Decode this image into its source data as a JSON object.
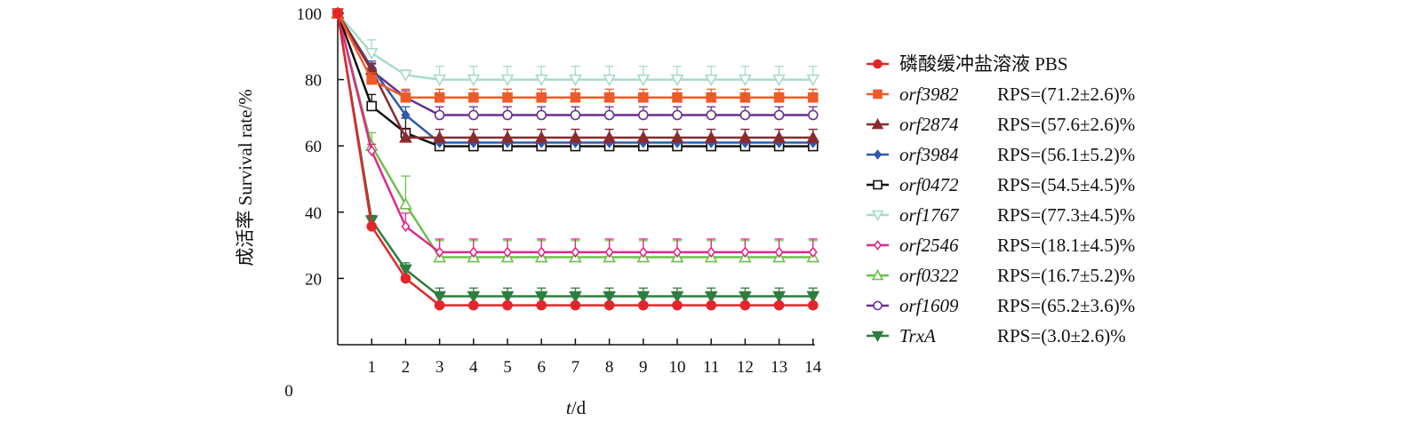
{
  "chart_data": {
    "type": "line",
    "xlabel_italic": "t",
    "xlabel_rest": "/d",
    "ylabel": "成活率 Survival rate/%",
    "origin_label": "0",
    "xlim": [
      0,
      14
    ],
    "ylim": [
      0,
      100
    ],
    "x_ticks": [
      1,
      2,
      3,
      4,
      5,
      6,
      7,
      8,
      9,
      10,
      11,
      12,
      13,
      14
    ],
    "y_ticks": [
      20,
      40,
      60,
      80,
      100
    ],
    "x": [
      0,
      1,
      2,
      3,
      4,
      5,
      6,
      7,
      8,
      9,
      10,
      11,
      12,
      13,
      14
    ],
    "legend_position": "right",
    "series": [
      {
        "name": "磷酸缓冲盐溶液 PBS",
        "italic": false,
        "rps": "",
        "color": "#e5252a",
        "marker": "circle",
        "filled": true,
        "values": [
          100,
          35.7,
          20,
          11.9,
          11.9,
          11.9,
          11.9,
          11.9,
          11.9,
          11.9,
          11.9,
          11.9,
          11.9,
          11.9,
          11.9
        ],
        "err": [
          0,
          0,
          0,
          0,
          0,
          0,
          0,
          0,
          0,
          0,
          0,
          0,
          0,
          0,
          0
        ]
      },
      {
        "name": "orf3982",
        "italic": true,
        "rps": "RPS=(71.2±2.6)%",
        "color": "#f05a28",
        "marker": "square",
        "filled": true,
        "values": [
          100,
          80,
          74.6,
          74.6,
          74.6,
          74.6,
          74.6,
          74.6,
          74.6,
          74.6,
          74.6,
          74.6,
          74.6,
          74.6,
          74.6
        ],
        "err": [
          0,
          2,
          2.5,
          2.5,
          2.5,
          2.5,
          2.5,
          2.5,
          2.5,
          2.5,
          2.5,
          2.5,
          2.5,
          2.5,
          2.5
        ]
      },
      {
        "name": "orf2874",
        "italic": true,
        "rps": "RPS=(57.6±2.6)%",
        "color": "#8b2b2e",
        "marker": "triangle-up",
        "filled": true,
        "values": [
          100,
          83,
          62.5,
          62.5,
          62.5,
          62.5,
          62.5,
          62.5,
          62.5,
          62.5,
          62.5,
          62.5,
          62.5,
          62.5,
          62.5
        ],
        "err": [
          0,
          2,
          2.5,
          2.5,
          2.5,
          2.5,
          2.5,
          2.5,
          2.5,
          2.5,
          2.5,
          2.5,
          2.5,
          2.5,
          2.5
        ]
      },
      {
        "name": "orf3984",
        "italic": true,
        "rps": "RPS=(56.1±5.2)%",
        "color": "#2f5aa8",
        "marker": "diamond",
        "filled": true,
        "values": [
          100,
          83.6,
          69.3,
          61,
          61,
          61,
          61,
          61,
          61,
          61,
          61,
          61,
          61,
          61,
          61
        ],
        "err": [
          0,
          2,
          2.5,
          4,
          4,
          4,
          4,
          4,
          4,
          4,
          4,
          4,
          4,
          4,
          4
        ]
      },
      {
        "name": "orf0472",
        "italic": true,
        "rps": "RPS=(54.5±4.5)%",
        "color": "#111111",
        "marker": "square",
        "filled": false,
        "values": [
          100,
          72,
          63.9,
          59.9,
          59.9,
          59.9,
          59.9,
          59.9,
          59.9,
          59.9,
          59.9,
          59.9,
          59.9,
          59.9,
          59.9
        ],
        "err": [
          0,
          3.5,
          4.5,
          0,
          0,
          0,
          0,
          0,
          0,
          0,
          0,
          0,
          0,
          0,
          0
        ]
      },
      {
        "name": "orf1767",
        "italic": true,
        "rps": "RPS=(77.3±4.5)%",
        "color": "#a6dcc6",
        "marker": "triangle-down",
        "filled": false,
        "values": [
          100,
          88,
          81.4,
          80,
          80,
          80,
          80,
          80,
          80,
          80,
          80,
          80,
          80,
          80,
          80
        ],
        "err": [
          0,
          4,
          1.5,
          4,
          4,
          4,
          4,
          4,
          4,
          4,
          4,
          4,
          4,
          4,
          4
        ]
      },
      {
        "name": "orf2546",
        "italic": true,
        "rps": "RPS=(18.1±4.5)%",
        "color": "#e0288c",
        "marker": "diamond",
        "filled": false,
        "values": [
          100,
          58.5,
          35.7,
          27.9,
          27.9,
          27.9,
          27.9,
          27.9,
          27.9,
          27.9,
          27.9,
          27.9,
          27.9,
          27.9,
          27.9
        ],
        "err": [
          0,
          2,
          4,
          4,
          4,
          4,
          4,
          4,
          4,
          4,
          4,
          4,
          4,
          4,
          4
        ]
      },
      {
        "name": "orf0322",
        "italic": true,
        "rps": "RPS=(16.7±5.2)%",
        "color": "#6cc04a",
        "marker": "triangle-up",
        "filled": false,
        "values": [
          100,
          60,
          42.4,
          26.4,
          26.4,
          26.4,
          26.4,
          26.4,
          26.4,
          26.4,
          26.4,
          26.4,
          26.4,
          26.4,
          26.4
        ],
        "err": [
          0,
          4,
          8.5,
          5,
          5,
          5,
          5,
          5,
          5,
          5,
          5,
          5,
          5,
          5,
          5
        ]
      },
      {
        "name": "orf1609",
        "italic": true,
        "rps": "RPS=(65.2±3.6)%",
        "color": "#6a2d91",
        "marker": "circle",
        "filled": false,
        "values": [
          100,
          82.7,
          74.6,
          69.3,
          69.3,
          69.3,
          69.3,
          69.3,
          69.3,
          69.3,
          69.3,
          69.3,
          69.3,
          69.3,
          69.3
        ],
        "err": [
          0,
          2,
          2,
          2.5,
          2.5,
          2.5,
          2.5,
          2.5,
          2.5,
          2.5,
          2.5,
          2.5,
          2.5,
          2.5,
          2.5
        ]
      },
      {
        "name": "TrxA",
        "italic": true,
        "rps": "RPS=(3.0±2.6)%",
        "color": "#2e7d3e",
        "marker": "triangle-down",
        "filled": true,
        "values": [
          100,
          37.5,
          22.7,
          14.6,
          14.6,
          14.6,
          14.6,
          14.6,
          14.6,
          14.6,
          14.6,
          14.6,
          14.6,
          14.6,
          14.6
        ],
        "err": [
          0,
          1.5,
          2,
          2.5,
          2.5,
          2.5,
          2.5,
          2.5,
          2.5,
          2.5,
          2.5,
          2.5,
          2.5,
          2.5,
          2.5
        ]
      }
    ]
  }
}
